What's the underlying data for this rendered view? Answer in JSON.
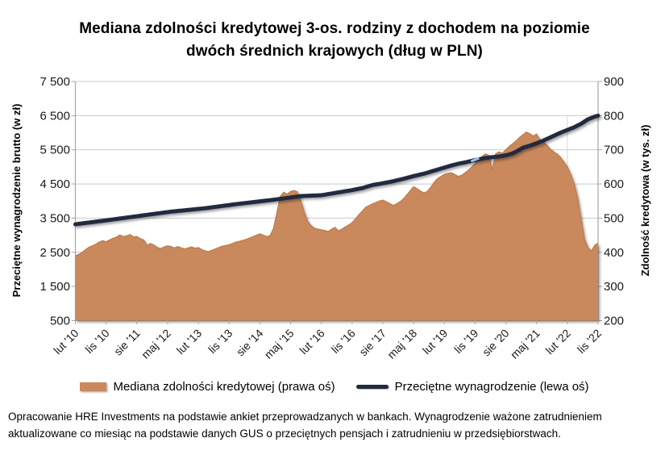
{
  "title": {
    "line1": "Mediana zdolności kredytowej 3-os. rodziny z dochodem na poziomie",
    "line2": "dwóch średnich krajowych (dług w PLN)"
  },
  "legend": {
    "capacity": "Mediana zdolności kredytowej (prawa oś)",
    "wage": "Przeciętne wynagrodzenie (lewa oś)"
  },
  "footer": {
    "text": "Opracowanie HRE Investments na podstawie ankiet przeprowadzanych w bankach. Wynagrodzenie ważone zatrudnieniem aktualizowane co miesiąc na podstawie danych GUS o przeciętnych pensjach i zatrudnieniu w przedsiębiorstwach."
  },
  "chart_data": {
    "type": "area+line",
    "frequency": "monthly",
    "x_start": "lut '10 (2010-02)",
    "x_end": "lis '22 (2022-11)",
    "grid": "horizontal",
    "legend_position": "bottom",
    "x_tick_labels": [
      "lut '10",
      "lis '10",
      "sie '11",
      "maj '12",
      "lut '13",
      "lis '13",
      "sie '14",
      "maj '15",
      "lut '16",
      "lis '16",
      "sie '17",
      "maj '18",
      "lut '19",
      "lis '19",
      "sie '20",
      "maj '21",
      "lut '22",
      "lis '22"
    ],
    "x_tick_month_indices": [
      0,
      9,
      18,
      27,
      36,
      45,
      54,
      63,
      72,
      81,
      90,
      99,
      108,
      117,
      126,
      135,
      144,
      153
    ],
    "left_axis": {
      "label": "Przeciętne wynagrodzenie brutto (w zł)",
      "min": 500,
      "max": 7500,
      "step": 1000,
      "tick_labels": [
        "7 500",
        "6 500",
        "5 500",
        "4 500",
        "3 500",
        "2 500",
        "1 500",
        "500"
      ]
    },
    "right_axis": {
      "label": "Zdolność kredytowa (w tys. zł)",
      "min": 200,
      "max": 900,
      "step": 100,
      "tick_labels": [
        "900",
        "800",
        "700",
        "600",
        "500",
        "400",
        "300",
        "200"
      ]
    },
    "colors": {
      "grid": "#C9C9C9",
      "axis": "#A6A6A6",
      "text": "#1a1a1a",
      "highlight_tick": "#9DC3E6"
    },
    "annotations": {
      "highlight_tick_month": 117,
      "partial_gridline_month": 144
    },
    "series": [
      {
        "name": "Mediana zdolności kredytowej (prawa oś)",
        "type": "area",
        "axis": "right",
        "color": "#C9895C",
        "edge_color": "#BC7B4C",
        "values": [
          390,
          394,
          400,
          408,
          415,
          419,
          424,
          430,
          434,
          431,
          436,
          441,
          444,
          451,
          446,
          448,
          452,
          445,
          446,
          440,
          436,
          420,
          426,
          421,
          414,
          411,
          416,
          419,
          417,
          413,
          417,
          413,
          410,
          413,
          416,
          412,
          414,
          408,
          404,
          402,
          406,
          410,
          414,
          418,
          420,
          422,
          426,
          430,
          432,
          435,
          438,
          442,
          446,
          450,
          454,
          450,
          446,
          449,
          470,
          517,
          564,
          576,
          570,
          578,
          581,
          577,
          549,
          517,
          490,
          478,
          470,
          468,
          466,
          464,
          461,
          468,
          473,
          462,
          468,
          474,
          480,
          487,
          498,
          510,
          521,
          532,
          537,
          542,
          546,
          550,
          553,
          548,
          543,
          537,
          542,
          548,
          556,
          568,
          580,
          592,
          586,
          579,
          574,
          578,
          590,
          605,
          616,
          622,
          628,
          631,
          633,
          628,
          622,
          625,
          632,
          640,
          650,
          660,
          670,
          680,
          688,
          684,
          640,
          688,
          694,
          690,
          700,
          710,
          718,
          726,
          736,
          744,
          752,
          747,
          740,
          746,
          729,
          722,
          714,
          702,
          694,
          688,
          678,
          664,
          650,
          628,
          600,
          560,
          500,
          440,
          415,
          403,
          421,
          427
        ]
      },
      {
        "name": "Przeciętne wynagrodzenie (lewa oś)",
        "type": "line",
        "axis": "left",
        "color": "#202A40",
        "values": [
          3320,
          3333,
          3346,
          3359,
          3371,
          3384,
          3397,
          3410,
          3422,
          3435,
          3448,
          3462,
          3475,
          3489,
          3502,
          3516,
          3529,
          3543,
          3556,
          3570,
          3583,
          3597,
          3610,
          3623,
          3637,
          3650,
          3663,
          3677,
          3690,
          3700,
          3710,
          3720,
          3730,
          3740,
          3750,
          3760,
          3770,
          3780,
          3790,
          3803,
          3817,
          3830,
          3843,
          3857,
          3870,
          3883,
          3897,
          3910,
          3922,
          3933,
          3945,
          3956,
          3968,
          3979,
          3991,
          4002,
          4014,
          4025,
          4038,
          4052,
          4065,
          4078,
          4092,
          4105,
          4118,
          4132,
          4145,
          4150,
          4154,
          4158,
          4162,
          4166,
          4170,
          4187,
          4203,
          4220,
          4237,
          4253,
          4270,
          4287,
          4303,
          4320,
          4340,
          4360,
          4380,
          4410,
          4440,
          4470,
          4487,
          4503,
          4520,
          4540,
          4560,
          4580,
          4603,
          4627,
          4650,
          4677,
          4703,
          4730,
          4753,
          4777,
          4800,
          4830,
          4860,
          4890,
          4920,
          4950,
          4980,
          5010,
          5040,
          5065,
          5090,
          5110,
          5130,
          5153,
          5177,
          5200,
          5220,
          5240,
          5260,
          5272,
          5285,
          5295,
          5305,
          5320,
          5340,
          5365,
          5395,
          5445,
          5500,
          5560,
          5590,
          5620,
          5655,
          5690,
          5730,
          5770,
          5817,
          5863,
          5910,
          5955,
          6000,
          6040,
          6080,
          6120,
          6160,
          6210,
          6260,
          6325,
          6390,
          6430,
          6470,
          6500
        ]
      }
    ]
  }
}
